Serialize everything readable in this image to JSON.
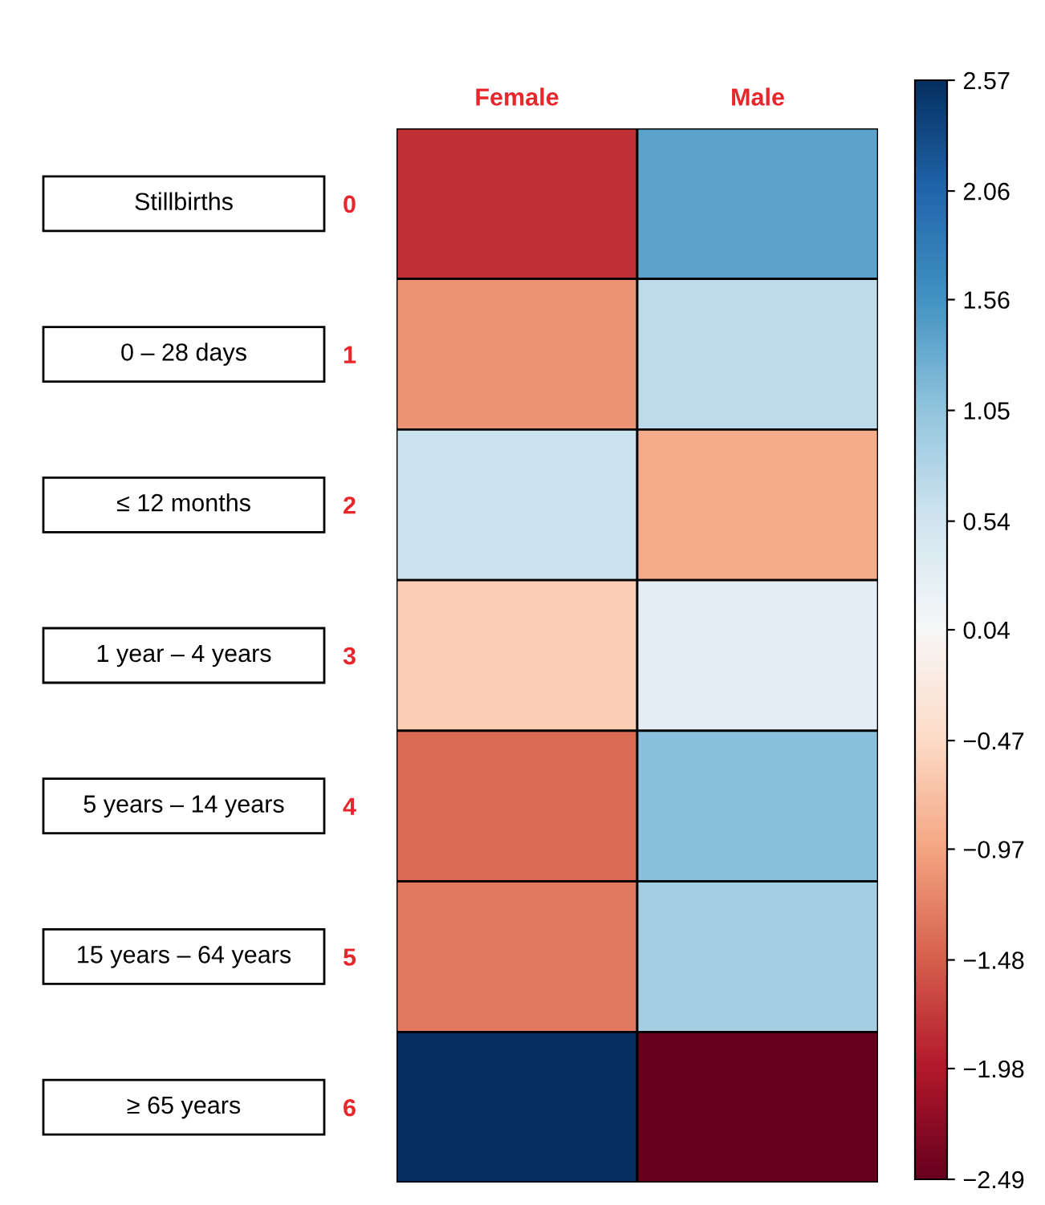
{
  "chart_data": {
    "type": "heatmap",
    "categories": [
      "Female",
      "Male"
    ],
    "y_categories": [
      "Stillbirths",
      "0 – 28 days",
      "≤ 12 months",
      "1 year – 4 years",
      "5 years – 14 years",
      "15 years – 64 years",
      "≥ 65 years"
    ],
    "y2_categories": [
      "0",
      "1",
      "2",
      "3",
      "4",
      "5",
      "6"
    ],
    "cells": [
      [
        -1.8,
        1.4
      ],
      [
        -1.1,
        0.7
      ],
      [
        0.6,
        -0.9
      ],
      [
        -0.6,
        0.3
      ],
      [
        -1.4,
        1.1
      ],
      [
        -1.3,
        0.9
      ],
      [
        2.57,
        -2.49
      ]
    ],
    "clim": [
      -2.49,
      2.57
    ],
    "cticks": [
      2.57,
      2.06,
      1.56,
      1.05,
      0.54,
      0.04,
      {
        "value": -0.47,
        "label": "−0.47"
      },
      {
        "value": -0.97,
        "label": "−0.97"
      },
      {
        "value": -1.48,
        "label": "−1.48"
      },
      {
        "value": -1.98,
        "label": "−1.98"
      },
      {
        "value": -2.49,
        "label": "−2.49"
      }
    ]
  }
}
